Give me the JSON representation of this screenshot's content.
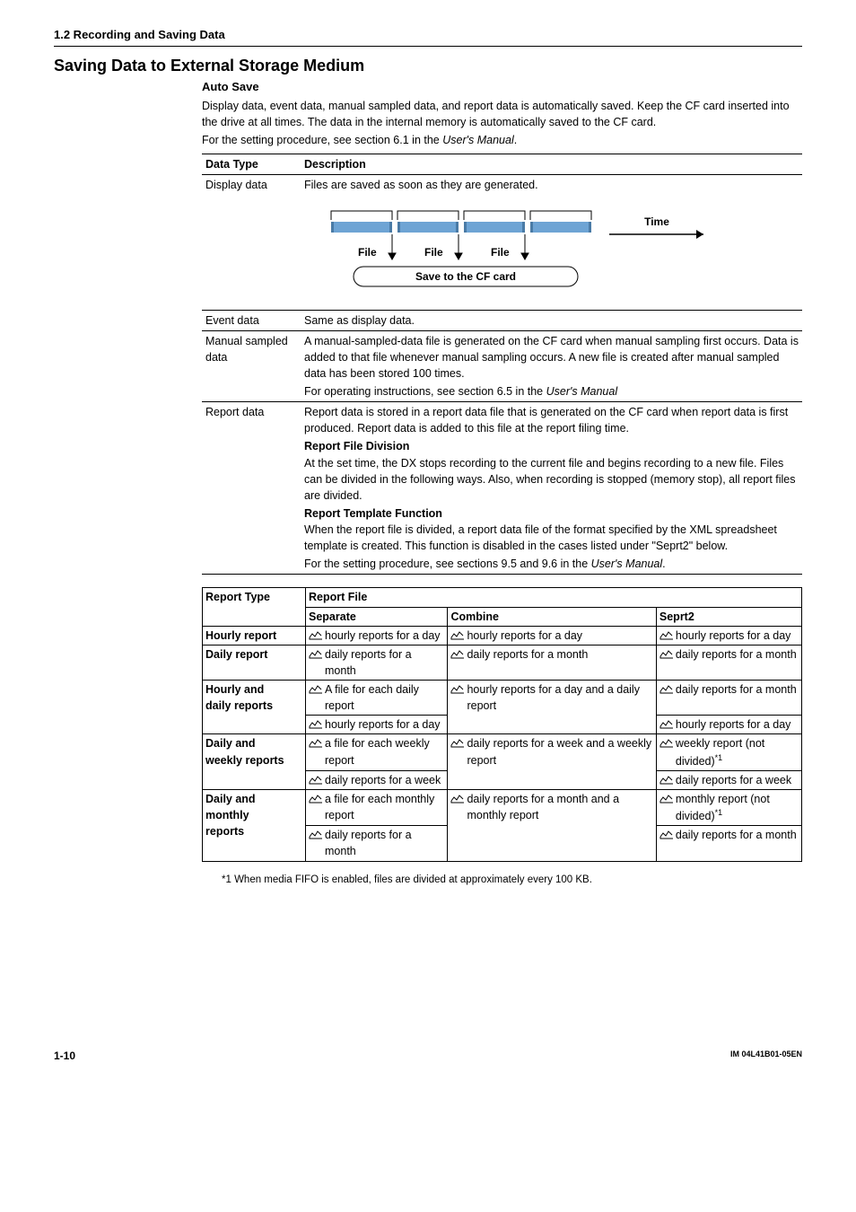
{
  "section_header": "1.2  Recording and Saving Data",
  "title": "Saving Data to External Storage Medium",
  "autosave": {
    "heading": "Auto Save",
    "p1": "Display data, event data, manual sampled data, and report data is automatically saved. Keep the CF card inserted into the drive at all times. The data in the internal memory is automatically saved to the CF card.",
    "p2a": "For the setting procedure, see section 6.1 in the ",
    "p2b": "User's Manual",
    "p2c": "."
  },
  "table1": {
    "head_c1": "Data Type",
    "head_c2": "Description",
    "rows": {
      "display": {
        "c1": "Display data",
        "c2": "Files are saved as soon as they are generated."
      },
      "event": {
        "c1": "Event data",
        "c2": "Same as display data."
      },
      "manual": {
        "c1a": "Manual sampled",
        "c1b": "data",
        "p1": "A manual-sampled-data file is generated on the CF card when manual sampling first occurs. Data is added to that file whenever manual sampling occurs. A new file is created after manual sampled data has been stored 100 times.",
        "p2a": "For operating instructions, see section 6.5 in the ",
        "p2b": "User's Manual"
      },
      "report": {
        "c1": "Report data",
        "p1": "Report data is stored in a report data file that is generated on the CF card when report data is first produced. Report data is added to this file at the report filing time.",
        "h1": "Report File Division",
        "p2": "At the set time, the DX stops recording to the current file and begins recording to a new file. Files can be divided in the following ways. Also, when recording is stopped (memory stop), all report files are divided.",
        "h2": "Report Template Function",
        "p3": "When the report file is divided, a report data file of the format specified by the XML spreadsheet template is created. This function is disabled in the cases listed under \"Seprt2\" below.",
        "p4a": "For the setting procedure, see sections 9.5 and 9.6 in the ",
        "p4b": "User's Manual",
        "p4c": "."
      }
    }
  },
  "diagram": {
    "colors": {
      "bar": "#6ea4d4",
      "cap": "#4a7ba6"
    },
    "file": "File",
    "time": "Time",
    "save": "Save to the CF card"
  },
  "table2": {
    "head_r1c1": "Report Type",
    "head_r1c2": "Report File",
    "head_r2c1": "Separate",
    "head_r2c2": "Combine",
    "head_r2c3": "Seprt2",
    "rows": [
      {
        "type": "Hourly report",
        "sep": [
          "hourly reports for a day"
        ],
        "comb": [
          "hourly reports for a day"
        ],
        "seprt2": [
          "hourly reports for a day"
        ]
      },
      {
        "type": "Daily report",
        "sep": [
          "daily reports for a month"
        ],
        "comb": [
          "daily reports for a month"
        ],
        "seprt2": [
          "daily reports for a month"
        ]
      },
      {
        "type_a": "Hourly and",
        "type_b": "daily reports",
        "sep": [
          "A file for each daily report",
          "hourly reports for a day"
        ],
        "comb": [
          "hourly reports for a day and a daily report"
        ],
        "seprt2": [
          "daily reports for a month",
          "hourly reports for a day"
        ]
      },
      {
        "type_a": "Daily and",
        "type_b": "weekly reports",
        "sep": [
          "a file for each weekly report",
          "daily reports for a week"
        ],
        "comb": [
          "daily reports for a week and a weekly report"
        ],
        "seprt2_sup": [
          "weekly report (not divided)",
          "daily reports for a week"
        ],
        "sup": "*1"
      },
      {
        "type_a": "Daily and",
        "type_b": "monthly",
        "type_c": "reports",
        "sep": [
          "a file for each monthly report",
          "daily reports for a month"
        ],
        "comb": [
          "daily reports for a month and a monthly report"
        ],
        "seprt2_sup": [
          "monthly report (not divided)",
          "daily reports for a month"
        ],
        "sup": "*1"
      }
    ]
  },
  "footnote": "*1  When media FIFO is enabled, files are divided at approximately every 100 KB.",
  "footer": {
    "page": "1-10",
    "doc": "IM 04L41B01-05EN"
  }
}
